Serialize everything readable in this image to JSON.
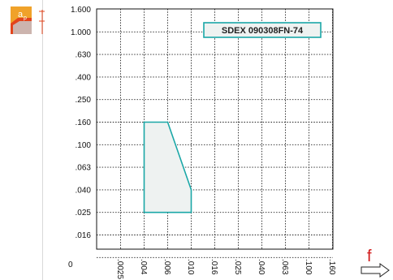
{
  "header": {
    "icon": "depth-of-cut-icon",
    "icon_label": "a",
    "icon_subscript": "p",
    "accent_color": "#f0a22a",
    "tool_color": "#e3451c"
  },
  "chart_data": {
    "type": "area",
    "title": "",
    "tool_code": "SDEX 090308FN-74",
    "y_axis_scale": "log",
    "y_ticks": [
      "1.600",
      "1.000",
      ".630",
      ".400",
      ".250",
      ".160",
      ".100",
      ".063",
      ".040",
      ".025",
      ".016",
      "0"
    ],
    "x_ticks": [
      "0",
      ".0025",
      ".004",
      ".006",
      ".010",
      ".016",
      ".025",
      ".040",
      ".063",
      ".100",
      ".160"
    ],
    "x_axis_label": "f",
    "grid": true,
    "region_color": "#1aa7a7",
    "region_fill": "#eef2f1",
    "region_polygon": [
      {
        "x": ".004",
        "y": ".160"
      },
      {
        "x": ".006",
        "y": ".160"
      },
      {
        "x": ".010",
        "y": ".040"
      },
      {
        "x": ".010",
        "y": ".025"
      },
      {
        "x": ".004",
        "y": ".025"
      }
    ]
  }
}
